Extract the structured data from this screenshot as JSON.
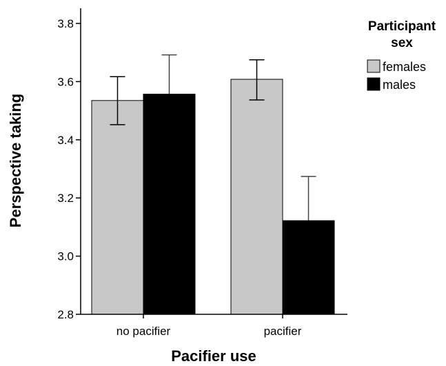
{
  "chart_data": {
    "type": "bar",
    "categories": [
      "no pacifier",
      "pacifier"
    ],
    "series": [
      {
        "name": "females",
        "values": [
          3.535,
          3.608
        ],
        "error_low": [
          3.452,
          3.537
        ],
        "error_high": [
          3.617,
          3.675
        ],
        "color": "#c8c8c8"
      },
      {
        "name": "males",
        "values": [
          3.557,
          3.122
        ],
        "error_low": [
          3.557,
          3.122
        ],
        "error_high": [
          3.692,
          3.274
        ],
        "color": "#000000"
      }
    ],
    "xlabel": "Pacifier use",
    "ylabel": "Perspective taking",
    "ylim": [
      2.8,
      3.85
    ],
    "yticks": [
      "2.8",
      "3.0",
      "3.2",
      "3.4",
      "3.6",
      "3.8"
    ],
    "grid": false,
    "legend": {
      "title_line1": "Participant",
      "title_line2": "sex",
      "position": "top-right"
    }
  }
}
